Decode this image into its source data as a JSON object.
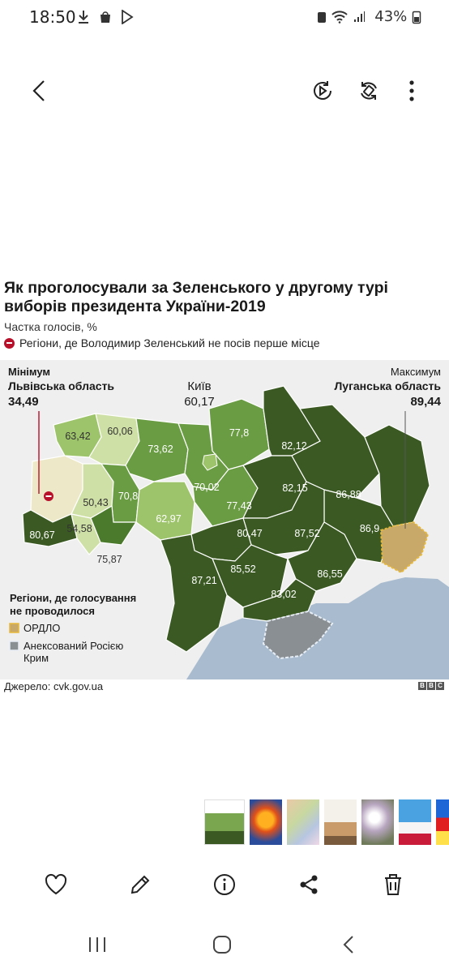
{
  "status_bar": {
    "time": "18:50",
    "left_icons": [
      "download-icon",
      "bag-icon",
      "play-store-icon"
    ],
    "battery": "43%"
  },
  "toolbar": {
    "back_icon": "back-arrow-icon",
    "icons": [
      "motion-play-icon",
      "rotate-icon",
      "more-vertical-icon"
    ]
  },
  "article": {
    "title": "Як проголосували за Зеленського у другому турі виборів президента України-2019",
    "subtitle": "Частка голосів, %",
    "legend_red": "Регіони, де Володимир Зеленський не посів перше місце",
    "source": "Джерело: cvk.gov.ua",
    "logo": [
      "B",
      "B",
      "C"
    ]
  },
  "map": {
    "min_label": "Мінімум",
    "min_region": "Львівська область",
    "min_value": "34,49",
    "kyiv_label": "Київ",
    "kyiv_value": "60,17",
    "max_label": "Максимум",
    "max_region": "Луганська область",
    "max_value": "89,44",
    "no_vote_title_1": "Регіони, де голосування",
    "no_vote_title_2": "не проводилося",
    "ordlo": "ОРДЛО",
    "crimea_1": "Анексований Росією",
    "crimea_2": "Крим",
    "values": [
      "63,42",
      "60,06",
      "73,62",
      "77,8",
      "82,12",
      "50,43",
      "70,8",
      "70,02",
      "82,15",
      "86,88",
      "62,97",
      "77,43",
      "54,58",
      "80,67",
      "80,47",
      "87,52",
      "86,9",
      "75,87",
      "85,52",
      "87,21",
      "86,55",
      "83,02"
    ],
    "colors": {
      "darkest": "#3b5a23",
      "dark": "#4c7a2d",
      "mid": "#6a9c44",
      "light": "#9ec46b",
      "pale": "#cfe0a6",
      "lowest": "#ede9c8",
      "water": "#a9bccf",
      "annexed": "#8a8f94",
      "ordlo": "#c9a96a"
    }
  },
  "thumbnails": [
    "thumb-map",
    "thumb-phoenix",
    "thumb-old-map",
    "thumb-easter",
    "thumb-willow",
    "thumb-church",
    "thumb-forgiveness",
    "thumb-card"
  ],
  "actions": [
    "heart-icon",
    "edit-icon",
    "info-icon",
    "share-icon",
    "delete-icon"
  ],
  "nav": [
    "recents-icon",
    "home-icon",
    "back-icon"
  ]
}
